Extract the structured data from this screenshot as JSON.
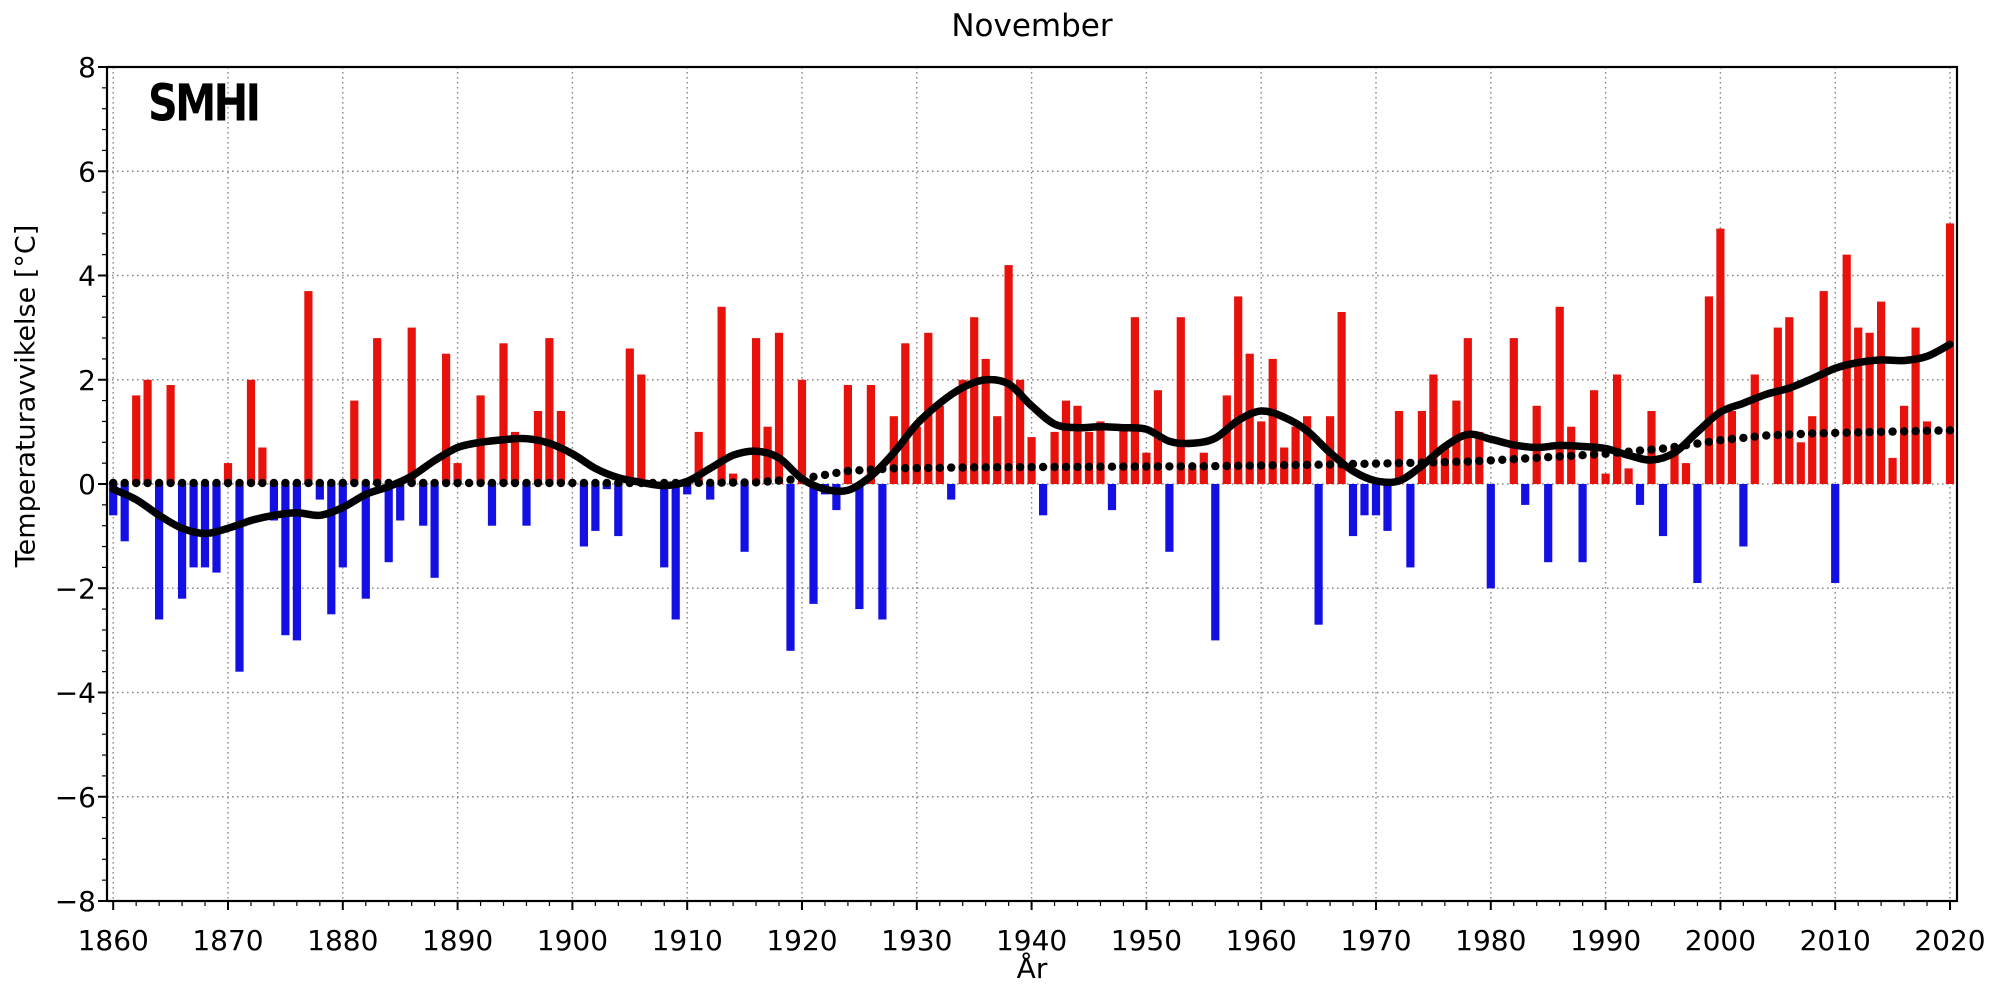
{
  "figure": {
    "title": "November",
    "logo": "SMHI"
  },
  "chart_data": {
    "type": "bar",
    "title": "November",
    "xlabel": "År",
    "ylabel": "Temperaturavvikelse [°C]",
    "ylim": [
      -8,
      8
    ],
    "xlim": [
      1859.5,
      2020.6
    ],
    "grid": true,
    "xticks": [
      "1860",
      "1870",
      "1880",
      "1890",
      "1900",
      "1910",
      "1920",
      "1930",
      "1940",
      "1950",
      "1960",
      "1970",
      "1980",
      "1990",
      "2000",
      "2010",
      "2020"
    ],
    "xtick_years": [
      1860,
      1870,
      1880,
      1890,
      1900,
      1910,
      1920,
      1930,
      1940,
      1950,
      1960,
      1970,
      1980,
      1990,
      2000,
      2010,
      2020
    ],
    "ytick_labels": [
      "8",
      "6",
      "4",
      "2",
      "0",
      "−2",
      "−4",
      "−6",
      "−8"
    ],
    "ytick_values": [
      8,
      6,
      4,
      2,
      0,
      -2,
      -4,
      -6,
      -8
    ],
    "colors": {
      "bar_positive": "#e8120c",
      "bar_negative": "#1410e4",
      "smoothed_line": "#000000",
      "reference_dots": "#000000",
      "grid": "#8a8a8a",
      "axis": "#000000"
    },
    "bars": {
      "start_year": 1860,
      "end_year": 2020,
      "values": [
        -0.6,
        -1.1,
        1.7,
        2.0,
        -2.6,
        1.9,
        -2.2,
        -1.6,
        -1.6,
        -1.7,
        0.4,
        -3.6,
        2.0,
        0.7,
        -0.7,
        -2.9,
        -3.0,
        3.7,
        -0.3,
        -2.5,
        -1.6,
        1.6,
        -2.2,
        2.8,
        -1.5,
        -0.7,
        3.0,
        -0.8,
        -1.8,
        2.5,
        0.4,
        0.0,
        1.7,
        -0.8,
        2.7,
        1.0,
        -0.8,
        1.4,
        2.8,
        1.4,
        0.0,
        -1.2,
        -0.9,
        -0.1,
        -1.0,
        2.6,
        2.1,
        0.0,
        -1.6,
        -2.6,
        -0.2,
        1.0,
        -0.3,
        3.4,
        0.2,
        -1.3,
        2.8,
        1.1,
        2.9,
        -3.2,
        2.0,
        -2.3,
        -0.2,
        -0.5,
        1.9,
        -2.4,
        1.9,
        -2.6,
        1.3,
        2.7,
        1.1,
        2.9,
        1.5,
        -0.3,
        2.0,
        3.2,
        2.4,
        1.3,
        4.2,
        2.0,
        0.9,
        -0.6,
        1.0,
        1.6,
        1.5,
        1.0,
        1.2,
        -0.5,
        1.1,
        3.2,
        0.6,
        1.8,
        -1.3,
        3.2,
        0.3,
        0.6,
        -3.0,
        1.7,
        3.6,
        2.5,
        1.2,
        2.4,
        0.7,
        1.1,
        1.3,
        -2.7,
        1.3,
        3.3,
        -1.0,
        -0.6,
        -0.6,
        -0.9,
        1.4,
        -1.6,
        1.4,
        2.1,
        0.7,
        1.6,
        2.8,
        1.0,
        -2.0,
        0.0,
        2.8,
        -0.4,
        1.5,
        -1.5,
        3.4,
        1.1,
        -1.5,
        1.8,
        0.2,
        2.1,
        0.3,
        -0.4,
        1.4,
        -1.0,
        0.7,
        0.4,
        -1.9,
        3.6,
        4.9,
        1.4,
        -1.2,
        2.1,
        0.0,
        3.0,
        3.2,
        0.8,
        1.3,
        3.7,
        -1.9,
        4.4,
        3.0,
        2.9,
        3.5,
        0.5,
        1.5,
        3.0,
        1.2,
        0.0,
        5.0
      ]
    },
    "smoothed_line": {
      "years": [
        1860,
        1862,
        1864,
        1866,
        1868,
        1870,
        1872,
        1874,
        1876,
        1878,
        1880,
        1882,
        1884,
        1886,
        1888,
        1890,
        1892,
        1894,
        1896,
        1898,
        1900,
        1902,
        1904,
        1906,
        1908,
        1910,
        1912,
        1914,
        1916,
        1918,
        1920,
        1922,
        1924,
        1926,
        1928,
        1930,
        1932,
        1934,
        1936,
        1938,
        1940,
        1942,
        1944,
        1946,
        1948,
        1950,
        1952,
        1954,
        1956,
        1958,
        1960,
        1962,
        1964,
        1966,
        1968,
        1970,
        1972,
        1974,
        1976,
        1978,
        1980,
        1982,
        1984,
        1986,
        1988,
        1990,
        1992,
        1994,
        1996,
        1998,
        2000,
        2002,
        2004,
        2006,
        2008,
        2010,
        2012,
        2014,
        2016,
        2018,
        2020
      ],
      "values": [
        -0.1,
        -0.3,
        -0.6,
        -0.85,
        -0.95,
        -0.85,
        -0.7,
        -0.6,
        -0.55,
        -0.6,
        -0.45,
        -0.2,
        -0.05,
        0.15,
        0.45,
        0.7,
        0.8,
        0.85,
        0.87,
        0.78,
        0.58,
        0.3,
        0.12,
        0.03,
        -0.03,
        0.05,
        0.3,
        0.55,
        0.63,
        0.5,
        0.1,
        -0.1,
        -0.12,
        0.15,
        0.6,
        1.15,
        1.55,
        1.85,
        2.0,
        1.92,
        1.5,
        1.15,
        1.08,
        1.1,
        1.08,
        1.05,
        0.82,
        0.78,
        0.88,
        1.22,
        1.4,
        1.28,
        1.02,
        0.6,
        0.25,
        0.06,
        0.06,
        0.35,
        0.72,
        0.95,
        0.86,
        0.75,
        0.7,
        0.74,
        0.72,
        0.68,
        0.55,
        0.46,
        0.6,
        1.0,
        1.38,
        1.55,
        1.72,
        1.84,
        2.02,
        2.22,
        2.33,
        2.38,
        2.37,
        2.45,
        2.68
      ]
    },
    "reference_dotted": {
      "years": [
        1860,
        1910,
        1916,
        1920,
        1924,
        1928,
        1935,
        1945,
        1955,
        1965,
        1972,
        1978,
        1984,
        1990,
        1995,
        2000,
        2004,
        2008,
        2014,
        2020
      ],
      "values": [
        0.02,
        0.02,
        0.03,
        0.1,
        0.25,
        0.3,
        0.32,
        0.33,
        0.34,
        0.37,
        0.4,
        0.43,
        0.5,
        0.58,
        0.68,
        0.84,
        0.93,
        0.97,
        1.0,
        1.03
      ]
    }
  }
}
